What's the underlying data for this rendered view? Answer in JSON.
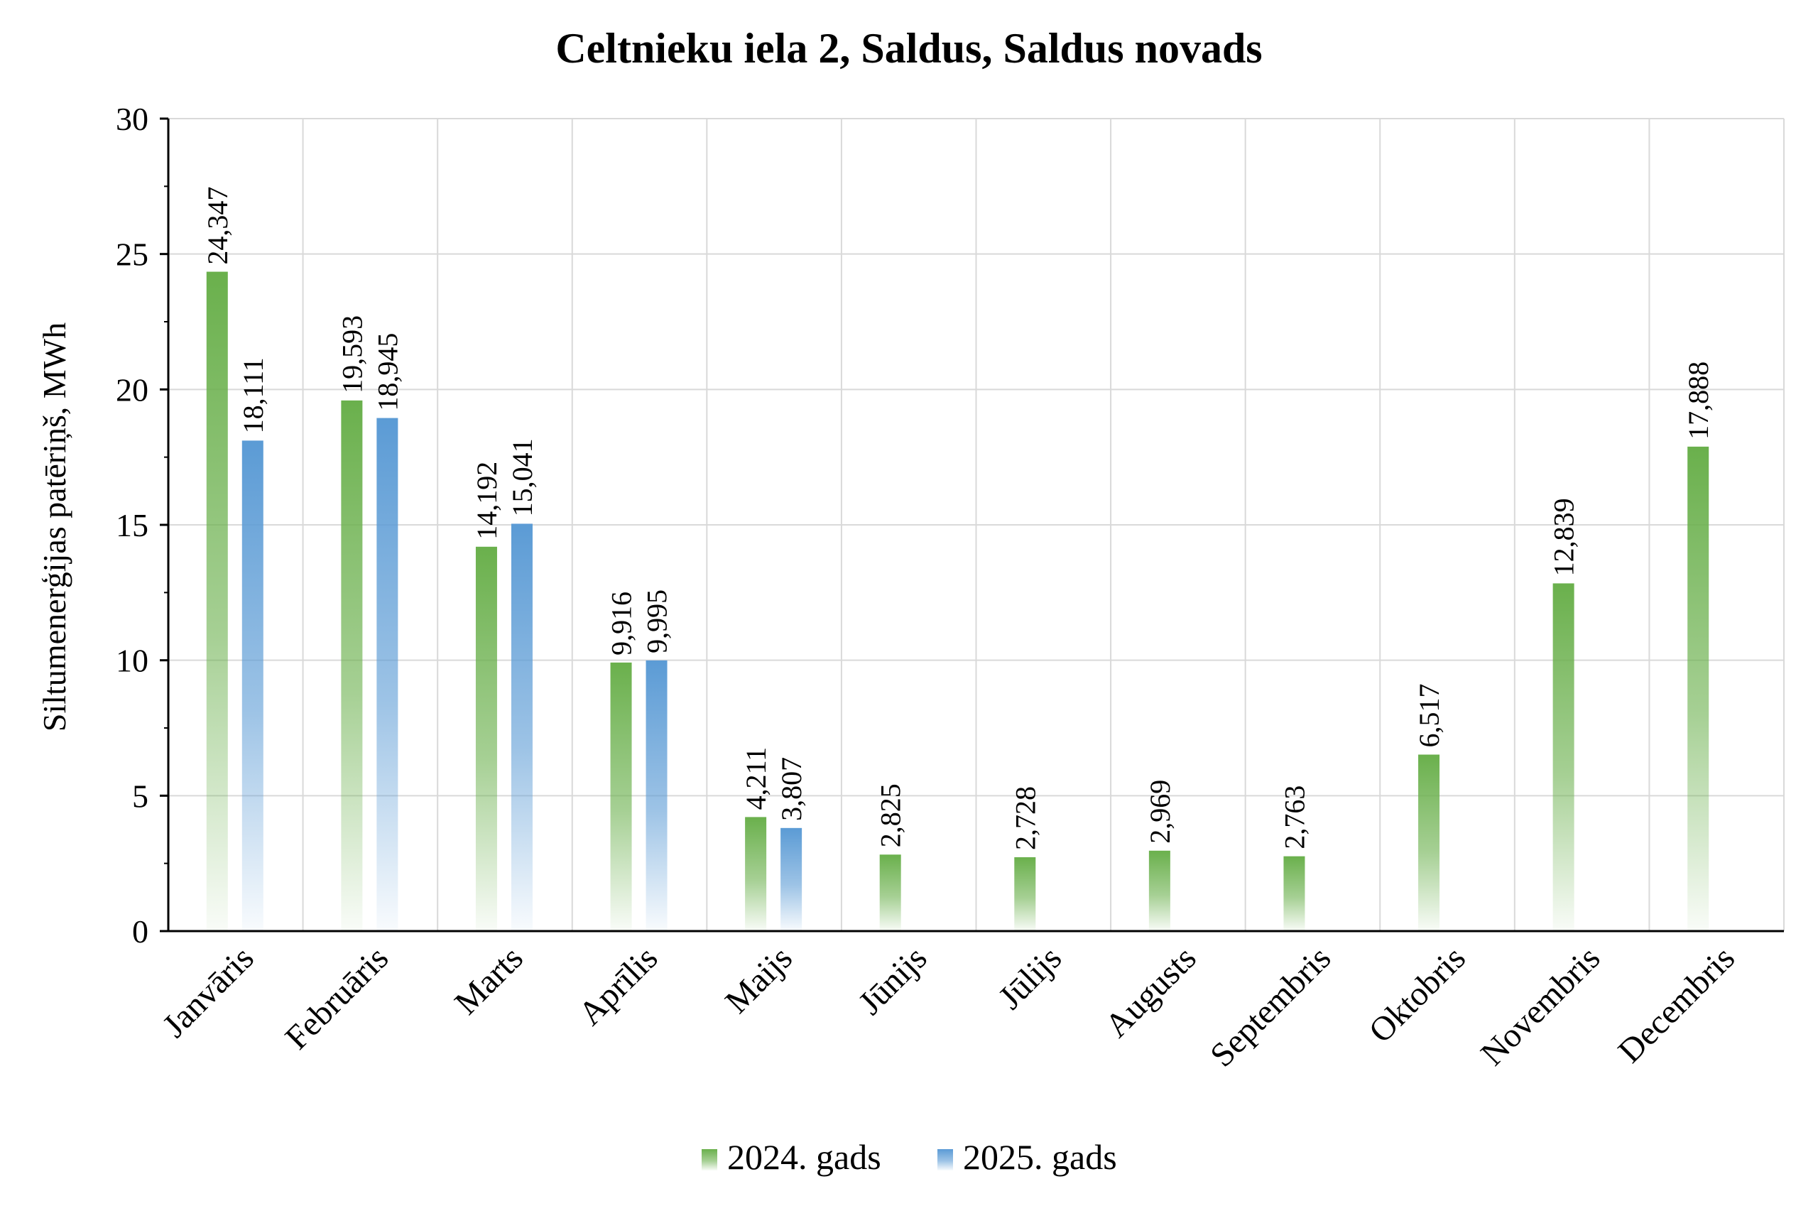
{
  "chart_data": {
    "type": "bar",
    "title": "Celtnieku iela 2, Saldus, Saldus novads",
    "ylabel": "Siltumenerģijas patēriņš, MWh",
    "xlabel": "",
    "ylim": [
      0,
      30
    ],
    "yticks": [
      "0",
      "5",
      "10",
      "15",
      "20",
      "25",
      "30"
    ],
    "grid": true,
    "legend_position": "bottom-center",
    "categories": [
      "Janvāris",
      "Februāris",
      "Marts",
      "Aprīlis",
      "Maijs",
      "Jūnijs",
      "Jūlijs",
      "Augusts",
      "Septembris",
      "Oktobris",
      "Novembris",
      "Decembris"
    ],
    "series": [
      {
        "name": "2024. gads",
        "color": "#6ab04c",
        "values": [
          24.347,
          19.593,
          14.192,
          9.916,
          4.211,
          2.825,
          2.728,
          2.969,
          2.763,
          6.517,
          12.839,
          17.888
        ],
        "labels": [
          "24,347",
          "19,593",
          "14,192",
          "9,916",
          "4,211",
          "2,825",
          "2,728",
          "2,969",
          "2,763",
          "6,517",
          "12,839",
          "17,888"
        ]
      },
      {
        "name": "2025. gads",
        "color": "#5b9bd5",
        "values": [
          18.111,
          18.945,
          15.041,
          9.995,
          3.807,
          null,
          null,
          null,
          null,
          null,
          null,
          null
        ],
        "labels": [
          "18,111",
          "18,945",
          "15,041",
          "9,995",
          "3,807",
          null,
          null,
          null,
          null,
          null,
          null,
          null
        ]
      }
    ]
  }
}
